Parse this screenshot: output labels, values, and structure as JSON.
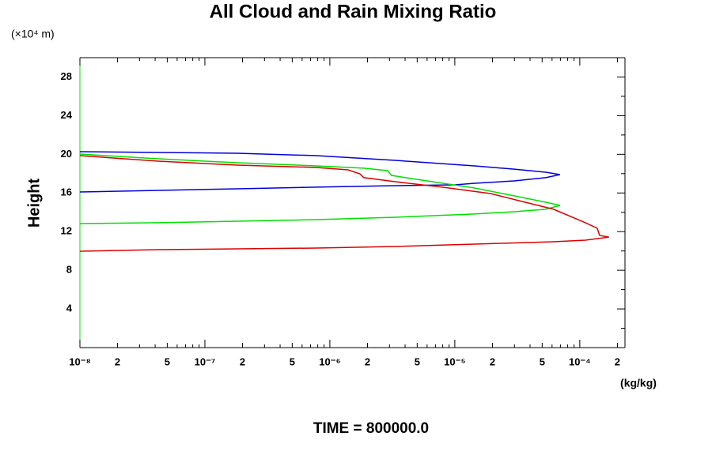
{
  "chart_data": {
    "type": "line",
    "title": "All Cloud and Rain Mixing Ratio",
    "y_unit": "(×10⁴ m)",
    "ylabel": "Height",
    "x_unit": "(kg/kg)",
    "footer": "TIME = 800000.0",
    "xscale": "log",
    "xlim": [
      1e-08,
      0.00023
    ],
    "ylim": [
      0,
      30
    ],
    "xticks": [
      {
        "value": 1e-08,
        "label": "10⁻⁸"
      },
      {
        "value": 2e-08,
        "label": "2"
      },
      {
        "value": 5e-08,
        "label": "5"
      },
      {
        "value": 1e-07,
        "label": "10⁻⁷"
      },
      {
        "value": 2e-07,
        "label": "2"
      },
      {
        "value": 5e-07,
        "label": "5"
      },
      {
        "value": 1e-06,
        "label": "10⁻⁶"
      },
      {
        "value": 2e-06,
        "label": "2"
      },
      {
        "value": 5e-06,
        "label": "5"
      },
      {
        "value": 1e-05,
        "label": "10⁻⁵"
      },
      {
        "value": 2e-05,
        "label": "2"
      },
      {
        "value": 5e-05,
        "label": "5"
      },
      {
        "value": 0.0001,
        "label": "10⁻⁴"
      },
      {
        "value": 0.0002,
        "label": "2"
      }
    ],
    "xminorticks": [
      3e-08,
      4e-08,
      6e-08,
      7e-08,
      8e-08,
      9e-08,
      3e-07,
      4e-07,
      6e-07,
      7e-07,
      8e-07,
      9e-07,
      3e-06,
      4e-06,
      6e-06,
      7e-06,
      8e-06,
      9e-06,
      3e-05,
      4e-05,
      6e-05,
      7e-05,
      8e-05,
      9e-05
    ],
    "yticks": [
      4,
      8,
      12,
      16,
      20,
      24,
      28
    ],
    "yminorticks": [
      2,
      6,
      10,
      14,
      18,
      22,
      26
    ],
    "series": [
      {
        "color": "#0000dd",
        "x": [
          1e-08,
          4.24e-08,
          1.82e-07,
          7.8e-07,
          3.35e-06,
          1.44e-05,
          2.99e-05,
          5.35e-05,
          6.95e-05,
          5.35e-05,
          2.99e-05,
          1.44e-05,
          1e-05,
          3.35e-06,
          7.8e-07,
          1.82e-07,
          4.24e-08,
          1e-08
        ],
        "y": [
          20.27,
          20.19,
          20.11,
          19.86,
          19.37,
          18.8,
          18.47,
          18.15,
          17.9,
          17.58,
          17.25,
          17.0,
          16.84,
          16.76,
          16.6,
          16.43,
          16.27,
          16.1
        ]
      },
      {
        "color": "#00e000",
        "x": [
          1e-08,
          4.24e-08,
          1.82e-07,
          7.8e-07,
          1.87e-06,
          2.9e-06,
          3.12e-06,
          4.49e-06,
          8.04e-06,
          1.44e-05,
          2.99e-05,
          5.35e-05,
          6.95e-05,
          5.35e-05,
          2.99e-05,
          1.44e-05,
          3.35e-06,
          7.8e-07,
          1.82e-07,
          4.24e-08,
          1e-08
        ],
        "y": [
          20.03,
          19.54,
          19.13,
          18.8,
          18.56,
          18.31,
          17.82,
          17.49,
          17.0,
          16.51,
          15.7,
          15.04,
          14.71,
          14.31,
          14.06,
          13.82,
          13.49,
          13.24,
          13.08,
          12.92,
          12.83
        ]
      },
      {
        "color": "#dd0000",
        "x": [
          1e-08,
          4.24e-08,
          1.82e-07,
          7.8e-07,
          1.4e-06,
          1.74e-06,
          1.87e-06,
          3.35e-06,
          8.04e-06,
          1.93e-05,
          3.45e-05,
          6.18e-05,
          0.000111,
          0.000138,
          0.000144,
          0.000171,
          0.000111,
          6.18e-05,
          1.44e-05,
          3.35e-06,
          7.8e-07,
          1.82e-07,
          4.24e-08,
          1e-08
        ],
        "y": [
          19.86,
          19.29,
          18.88,
          18.64,
          18.39,
          17.98,
          17.58,
          17.17,
          16.59,
          15.94,
          15.12,
          14.31,
          12.92,
          12.34,
          11.61,
          11.44,
          11.12,
          10.95,
          10.71,
          10.46,
          10.3,
          10.22,
          10.14,
          9.97
        ]
      }
    ]
  }
}
